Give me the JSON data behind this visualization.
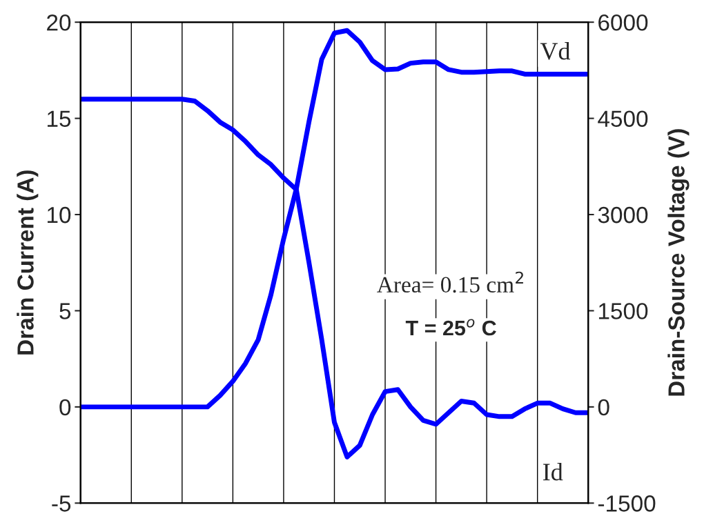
{
  "chart_data": {
    "type": "line",
    "ylabel": "Drain Current (A)",
    "y2label": "Drain-Source Voltage (V)",
    "annotations": [
      "Vd",
      "Id",
      "Area= 0.15 cm$^{2}$",
      "T = 25$^{o}$ C"
    ],
    "categories": [
      null,
      null,
      null,
      null,
      null,
      null,
      null,
      null,
      null,
      null,
      null,
      null,
      null,
      null,
      null,
      null,
      null,
      null,
      null,
      null,
      null,
      null,
      null,
      null,
      null,
      null,
      null,
      null,
      null,
      null,
      null,
      null,
      null,
      null,
      null,
      null,
      null,
      null,
      null,
      null,
      null
    ],
    "ylim": [
      -5,
      20
    ],
    "yticks": [
      -5,
      0,
      5,
      10,
      15,
      20
    ],
    "y2lim": [
      -1500,
      6000
    ],
    "y2ticks": [
      -1500,
      0,
      1500,
      3000,
      4500,
      6000
    ],
    "grid": "x",
    "line_style": "solid",
    "series": [
      {
        "color": "#0000ff",
        "values": [
          16,
          16,
          16,
          16,
          16,
          16,
          16,
          16,
          16,
          15.9,
          15.4,
          14.8,
          14.4,
          13.8,
          13.1,
          12.6,
          11.9,
          11.3,
          7.5,
          3.5,
          -0.8,
          -2.6,
          -2.0,
          -0.4,
          0.8,
          0.9,
          0,
          -0.7,
          -0.9,
          -0.3,
          0.3,
          0.2,
          -0.4,
          -0.5,
          -0.5,
          -0.1,
          0.2,
          0.2,
          -0.1,
          -0.3,
          -0.3
        ]
      },
      {
        "color": "#0000ff",
        "axis": "y2",
        "values": [
          0,
          0,
          0,
          0,
          0,
          0,
          0,
          0,
          0,
          0,
          0,
          180,
          400,
          680,
          1050,
          1750,
          2620,
          3400,
          4450,
          5420,
          5830,
          5870,
          5690,
          5400,
          5260,
          5270,
          5360,
          5380,
          5380,
          5260,
          5220,
          5220,
          5230,
          5240,
          5240,
          5190,
          5190,
          5190,
          5190,
          5190,
          5190
        ]
      }
    ]
  }
}
